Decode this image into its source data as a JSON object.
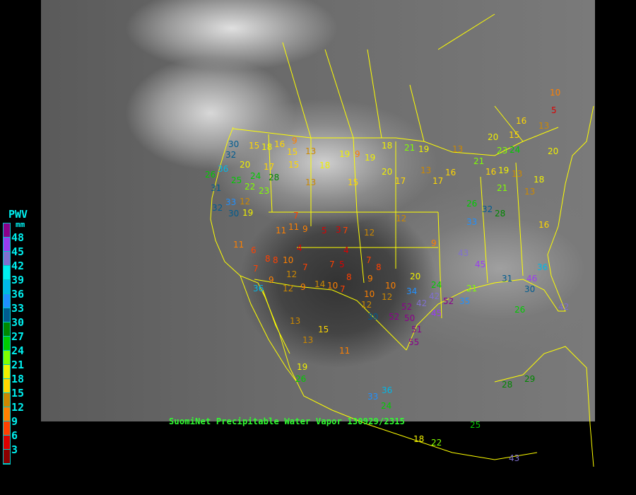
{
  "legend": {
    "title": "PWV",
    "unit": "mm",
    "labels": [
      "48",
      "45",
      "42",
      "39",
      "36",
      "33",
      "30",
      "27",
      "24",
      "21",
      "18",
      "15",
      "12",
      "9",
      "6",
      "3"
    ],
    "colors": [
      "#8b008b",
      "#9a3cf0",
      "#8070d0",
      "#00f0f0",
      "#00b8e8",
      "#2090ff",
      "#005c90",
      "#008800",
      "#00cc00",
      "#80ff00",
      "#f0f000",
      "#ffd700",
      "#cc8800",
      "#ff8000",
      "#ff4000",
      "#dd0000",
      "#8b0000"
    ]
  },
  "caption": "SuomiNet Precipitable Water Vapor 130929/2315",
  "colors": {
    "boundaries": "#ffff00",
    "caption": "#30ff30",
    "legend_text": "#00f0f0"
  },
  "stations": [
    "10",
    "5",
    "16",
    "13",
    "15",
    "20",
    "21",
    "19",
    "18",
    "20",
    "13",
    "9",
    "16",
    "15",
    "18",
    "13",
    "30",
    "32",
    "36",
    "20",
    "24",
    "28",
    "15",
    "17",
    "15",
    "18",
    "13",
    "15",
    "19",
    "9",
    "19",
    "13",
    "20",
    "17",
    "16",
    "21",
    "19",
    "13",
    "16",
    "23",
    "24",
    "25",
    "22",
    "23",
    "26",
    "31",
    "32",
    "33",
    "30",
    "21",
    "26",
    "28",
    "33",
    "32",
    "17",
    "18",
    "13",
    "16",
    "19",
    "11",
    "9",
    "11",
    "7",
    "5",
    "7",
    "12",
    "11",
    "6",
    "7",
    "8",
    "12",
    "10",
    "7",
    "8",
    "9",
    "4",
    "7",
    "5",
    "8",
    "7",
    "8",
    "9",
    "10",
    "10",
    "12",
    "4",
    "12",
    "14",
    "12",
    "9",
    "13",
    "10",
    "12",
    "9",
    "20",
    "24",
    "34",
    "42",
    "52",
    "42",
    "45",
    "52",
    "50",
    "51",
    "55",
    "52",
    "45",
    "43",
    "31",
    "46",
    "35",
    "21",
    "26",
    "30",
    "36",
    "42",
    "30",
    "13",
    "19",
    "26",
    "33",
    "36",
    "24",
    "18",
    "22",
    "25",
    "43",
    "28",
    "29",
    "36",
    "7",
    "3",
    "12",
    "15",
    "11"
  ]
}
